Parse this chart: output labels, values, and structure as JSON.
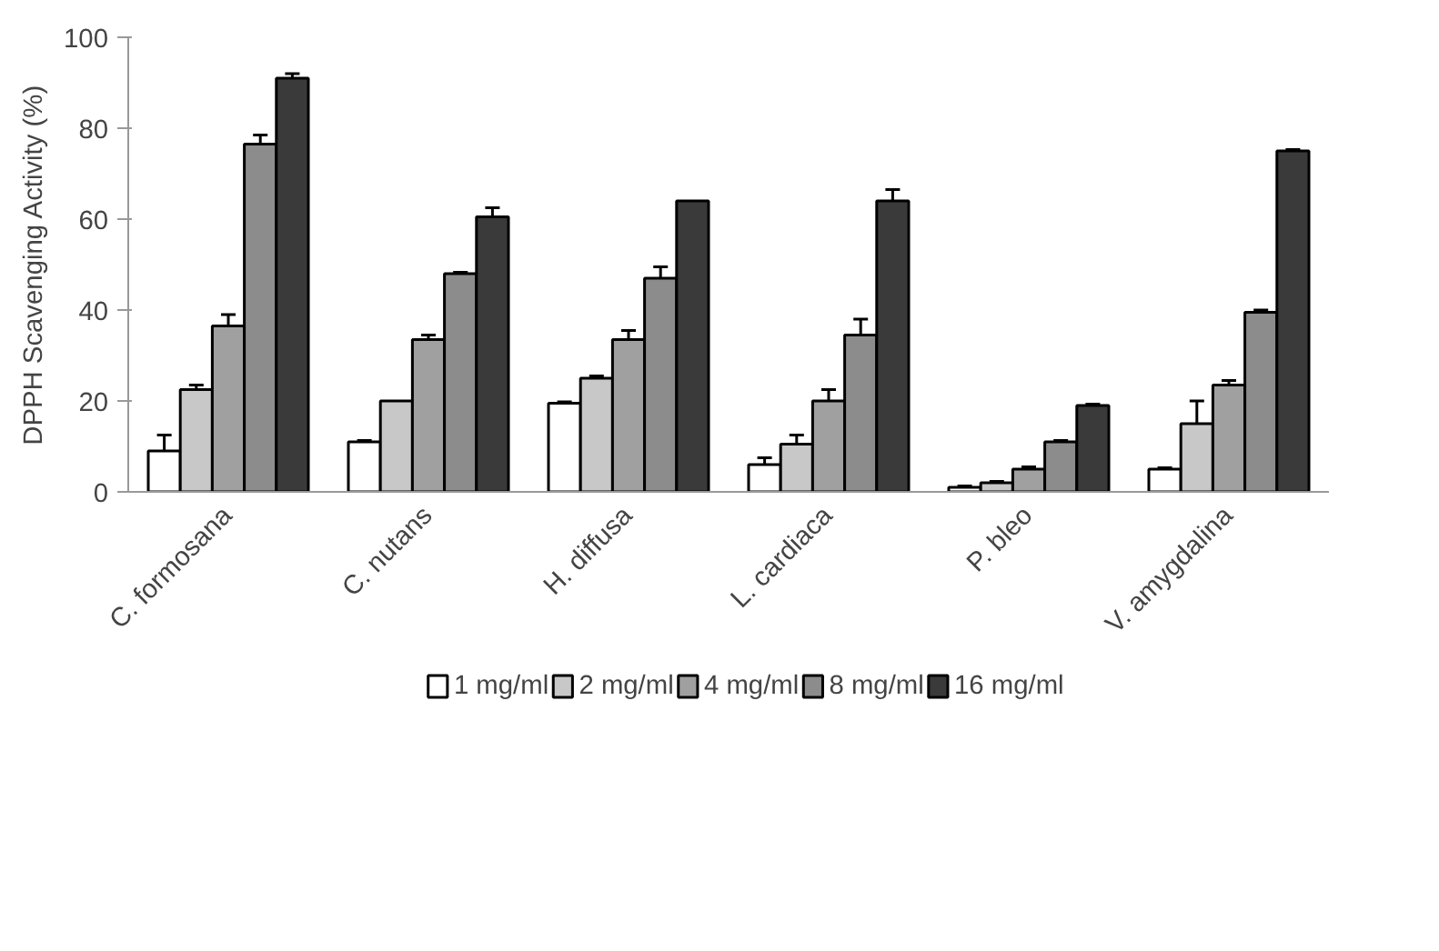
{
  "chart_data": {
    "type": "bar",
    "ylabel": "DPPH Scavenging Activity (%)",
    "categories": [
      "C. formosana",
      "C. nutans",
      "H. diffusa",
      "L. cardiaca",
      "P. bleo",
      "V. amygdalina"
    ],
    "series": [
      {
        "name": "1 mg/ml",
        "color": "#ffffff",
        "values": [
          9,
          11,
          19.5,
          6,
          1,
          5
        ],
        "errors": [
          3.5,
          0.3,
          0.3,
          1.5,
          0.3,
          0.3
        ]
      },
      {
        "name": "2 mg/ml",
        "color": "#c8c8c8",
        "values": [
          22.5,
          20,
          25,
          10.5,
          2,
          15
        ],
        "errors": [
          1,
          null,
          0.5,
          2,
          0.3,
          5
        ]
      },
      {
        "name": "4 mg/ml",
        "color": "#a0a0a0",
        "values": [
          36.5,
          33.5,
          33.5,
          20,
          5,
          23.5
        ],
        "errors": [
          2.5,
          1,
          2,
          2.5,
          0.5,
          1
        ]
      },
      {
        "name": "8 mg/ml",
        "color": "#8c8c8c",
        "values": [
          76.5,
          48,
          47,
          34.5,
          11,
          39.5
        ],
        "errors": [
          2,
          0.3,
          2.5,
          3.5,
          0.3,
          0.5
        ]
      },
      {
        "name": "16 mg/ml",
        "color": "#3a3a3a",
        "values": [
          91,
          60.5,
          64,
          64,
          19,
          75
        ],
        "errors": [
          1,
          2,
          null,
          2.5,
          0.3,
          0.3
        ]
      }
    ],
    "ylim": [
      0,
      100
    ],
    "yticks": [
      0,
      20,
      40,
      60,
      80,
      100
    ],
    "grid": false,
    "legend": "bottom"
  }
}
